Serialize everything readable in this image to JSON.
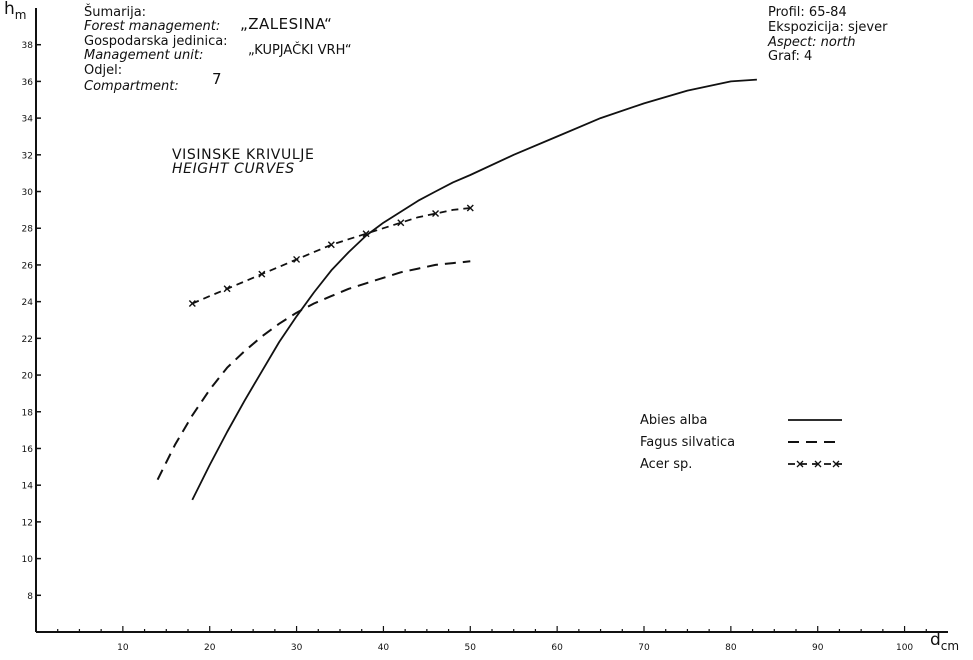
{
  "header_left": {
    "forest_hr": "Šumarija:",
    "forest_en": "Forest management:",
    "forest_value": "„ZALESINA“",
    "unit_hr": "Gospodarska jedinica:",
    "unit_en": "Management unit:",
    "unit_value": "„KUPJAČKI VRH“",
    "odjel_hr": "Odjel:",
    "odjel_en": "Compartment:",
    "odjel_value": "7"
  },
  "header_right": {
    "profil": "Profil: 65-84",
    "ekspozicija": "Ekspozicija: sjever",
    "aspect": "Aspect: north",
    "graf": "Graf: 4"
  },
  "chart_data": {
    "type": "line",
    "title": "VISINSKE KRIVULJE",
    "subtitle": "HEIGHT CURVES",
    "xlabel": "dcm",
    "ylabel": "hm",
    "xlim": [
      0,
      105
    ],
    "ylim": [
      6,
      40
    ],
    "x_ticks": [
      10,
      20,
      30,
      40,
      50,
      60,
      70,
      80,
      90,
      100
    ],
    "x_tick_labels": [
      "10",
      "20",
      "30",
      "40",
      "50",
      "60",
      "70",
      "80",
      "90",
      "100"
    ],
    "y_ticks": [
      8,
      10,
      12,
      14,
      16,
      18,
      20,
      22,
      24,
      26,
      28,
      30,
      32,
      34,
      36,
      38
    ],
    "y_tick_labels": [
      "8",
      "10",
      "12",
      "14",
      "16",
      "18",
      "20",
      "22",
      "24",
      "26",
      "28",
      "30",
      "32",
      "34",
      "36",
      "38"
    ],
    "grid": false,
    "legend_position": "lower-right",
    "series": [
      {
        "name": "Abies alba",
        "style": "solid",
        "color": "#111111",
        "x": [
          18,
          20,
          22,
          24,
          26,
          28,
          30,
          32,
          34,
          36,
          38,
          40,
          42,
          44,
          46,
          48,
          50,
          55,
          60,
          65,
          70,
          75,
          80,
          83
        ],
        "y": [
          13.2,
          15.1,
          16.9,
          18.6,
          20.2,
          21.8,
          23.2,
          24.5,
          25.7,
          26.7,
          27.6,
          28.3,
          28.9,
          29.5,
          30.0,
          30.5,
          30.9,
          32.0,
          33.0,
          34.0,
          34.8,
          35.5,
          36.0,
          36.1
        ]
      },
      {
        "name": "Fagus silvatica",
        "style": "dashed",
        "color": "#111111",
        "x": [
          14,
          16,
          18,
          20,
          22,
          24,
          26,
          28,
          30,
          32,
          34,
          36,
          38,
          40,
          42,
          44,
          46,
          48,
          50
        ],
        "y": [
          14.3,
          16.2,
          17.8,
          19.2,
          20.4,
          21.3,
          22.1,
          22.8,
          23.4,
          23.9,
          24.3,
          24.7,
          25.0,
          25.3,
          25.6,
          25.8,
          26.0,
          26.1,
          26.2
        ]
      },
      {
        "name": "Acer sp.",
        "style": "dash-cross",
        "color": "#111111",
        "x": [
          18,
          20,
          22,
          24,
          26,
          28,
          30,
          32,
          34,
          36,
          38,
          40,
          42,
          44,
          46,
          48,
          50
        ],
        "y": [
          23.9,
          24.3,
          24.7,
          25.1,
          25.5,
          25.9,
          26.3,
          26.7,
          27.1,
          27.4,
          27.7,
          28.0,
          28.3,
          28.6,
          28.8,
          29.0,
          29.1
        ]
      }
    ],
    "axis_label_y_main": "h",
    "axis_label_y_sub": "m",
    "axis_label_x_main": "d",
    "axis_label_x_sub": "cm"
  }
}
